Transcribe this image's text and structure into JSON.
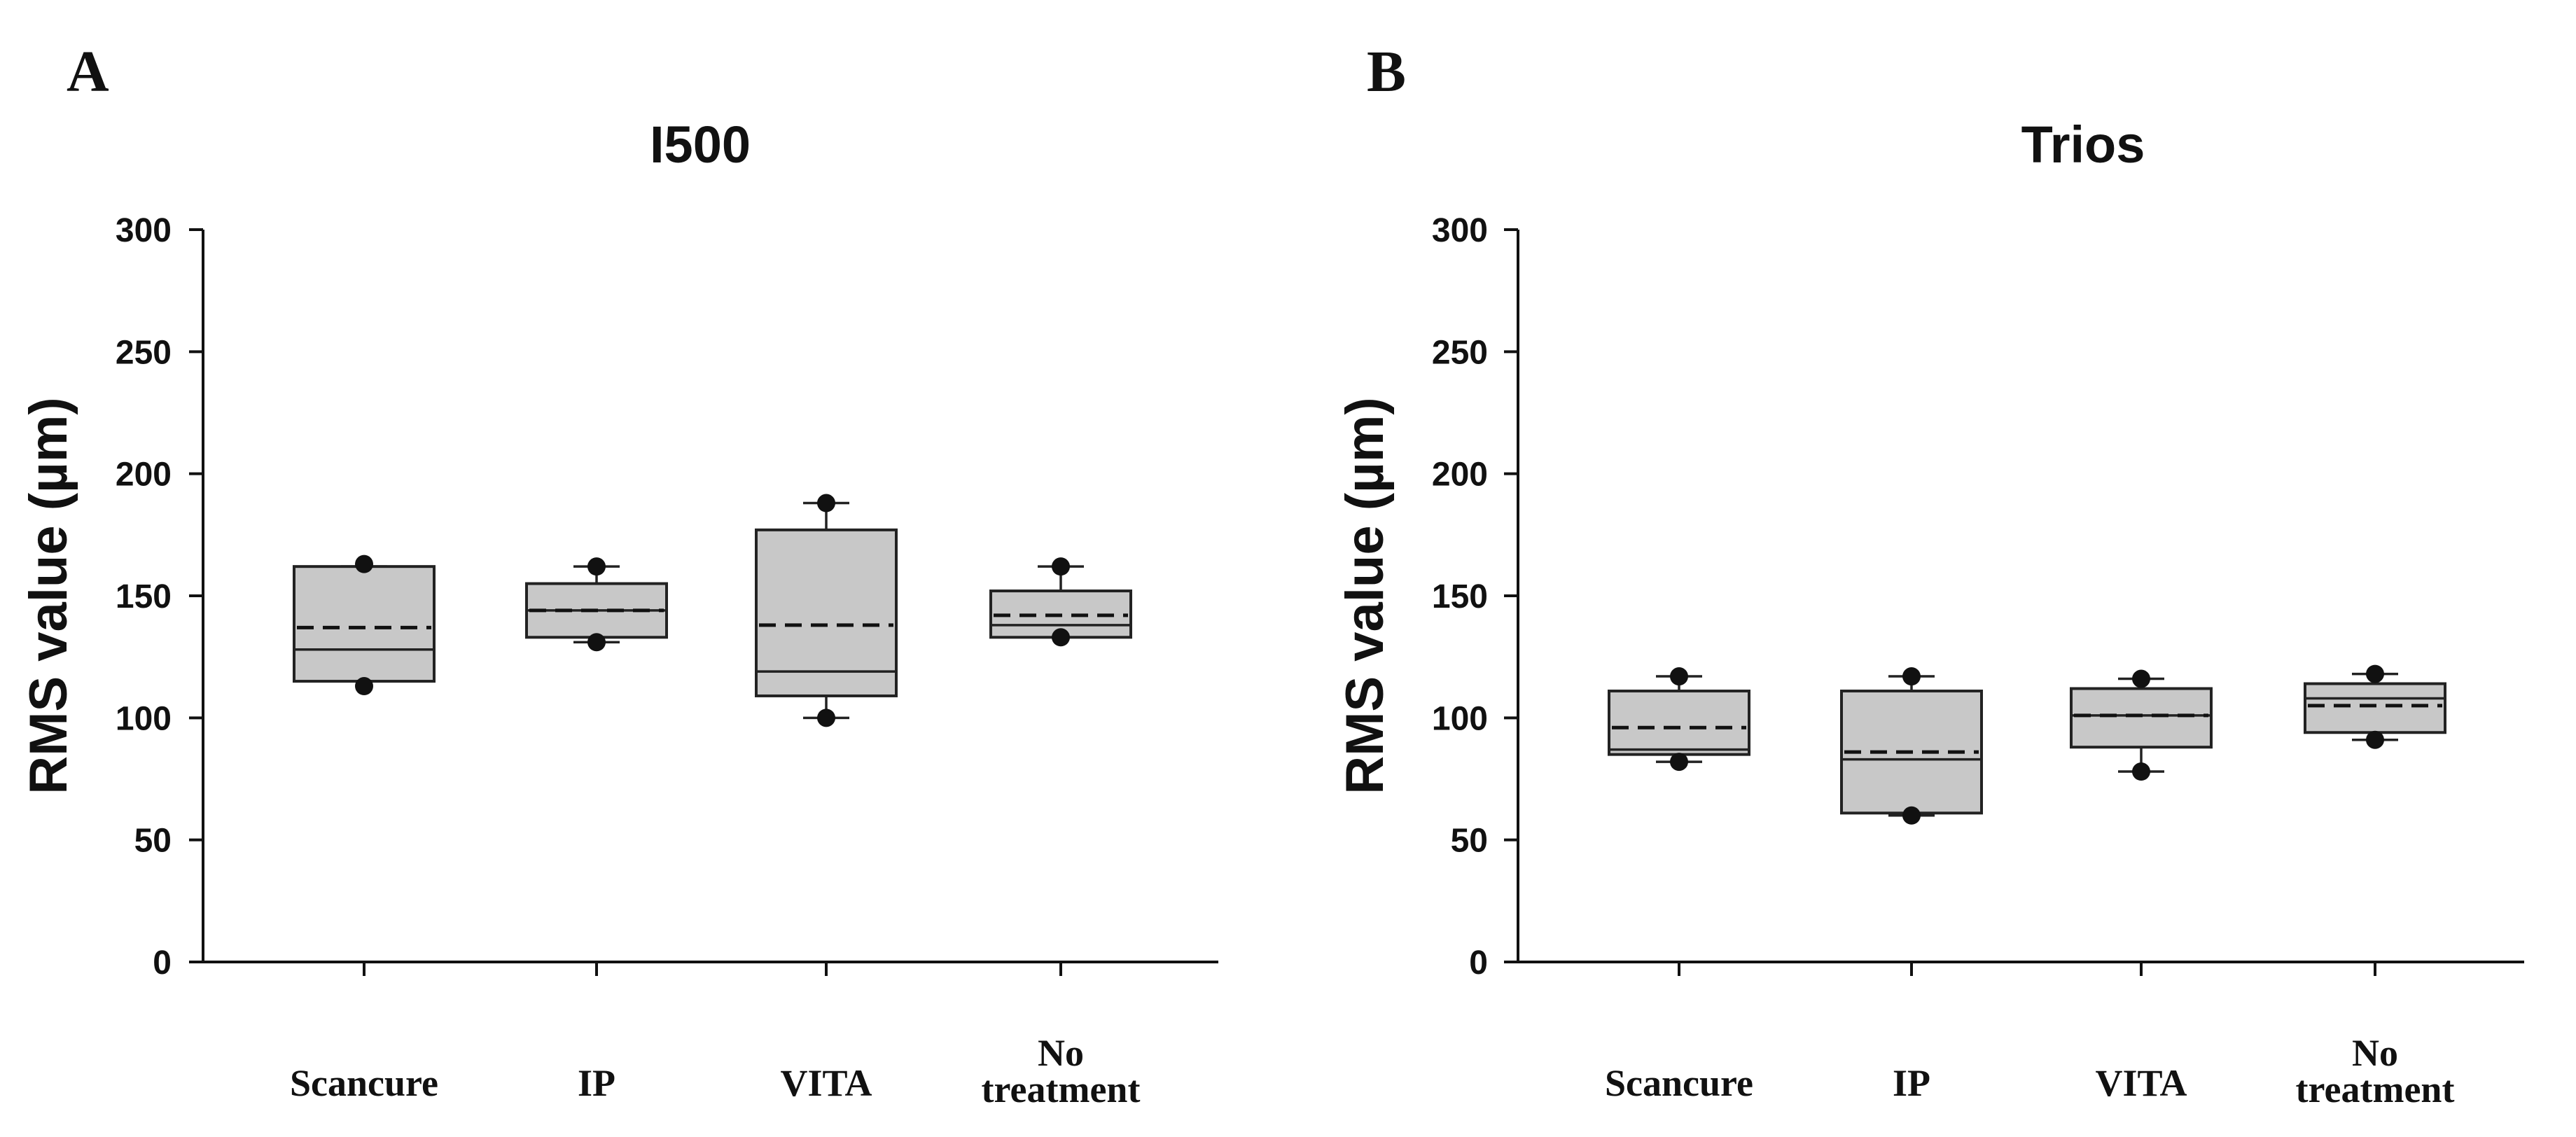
{
  "chart_data": [
    {
      "type": "box",
      "panel_letter": "A",
      "title": "I500",
      "ylabel": "RMS value (µm)",
      "xlabel": "",
      "ylim": [
        0,
        300
      ],
      "yticks": [
        0,
        50,
        100,
        150,
        200,
        250,
        300
      ],
      "groups": [
        {
          "label": [
            "Scancure"
          ],
          "q1": 115,
          "median": 128,
          "q3": 162,
          "mean": 137,
          "whisker_low": 115,
          "whisker_high": 162,
          "outliers": [
            113,
            163
          ]
        },
        {
          "label": [
            "IP"
          ],
          "q1": 133,
          "median": 144,
          "q3": 155,
          "mean": 144,
          "whisker_low": 131,
          "whisker_high": 162,
          "outliers": [
            131,
            162
          ]
        },
        {
          "label": [
            "VITA"
          ],
          "q1": 109,
          "median": 119,
          "q3": 177,
          "mean": 138,
          "whisker_low": 100,
          "whisker_high": 188,
          "outliers": [
            100,
            188
          ]
        },
        {
          "label": [
            "No",
            "treatment"
          ],
          "q1": 133,
          "median": 138,
          "q3": 152,
          "mean": 142,
          "whisker_low": 133,
          "whisker_high": 162,
          "outliers": [
            133,
            162
          ]
        }
      ]
    },
    {
      "type": "box",
      "panel_letter": "B",
      "title": "Trios",
      "ylabel": "RMS value (µm)",
      "xlabel": "",
      "ylim": [
        0,
        300
      ],
      "yticks": [
        0,
        50,
        100,
        150,
        200,
        250,
        300
      ],
      "groups": [
        {
          "label": [
            "Scancure"
          ],
          "q1": 85,
          "median": 87,
          "q3": 111,
          "mean": 96,
          "whisker_low": 82,
          "whisker_high": 117,
          "outliers": [
            82,
            117
          ]
        },
        {
          "label": [
            "IP"
          ],
          "q1": 61,
          "median": 83,
          "q3": 111,
          "mean": 86,
          "whisker_low": 60,
          "whisker_high": 117,
          "outliers": [
            60,
            117
          ]
        },
        {
          "label": [
            "VITA"
          ],
          "q1": 88,
          "median": 101,
          "q3": 112,
          "mean": 101,
          "whisker_low": 78,
          "whisker_high": 116,
          "outliers": [
            78,
            116
          ]
        },
        {
          "label": [
            "No",
            "treatment"
          ],
          "q1": 94,
          "median": 108,
          "q3": 114,
          "mean": 105,
          "whisker_low": 91,
          "whisker_high": 118,
          "outliers": [
            91,
            118
          ]
        }
      ]
    }
  ]
}
